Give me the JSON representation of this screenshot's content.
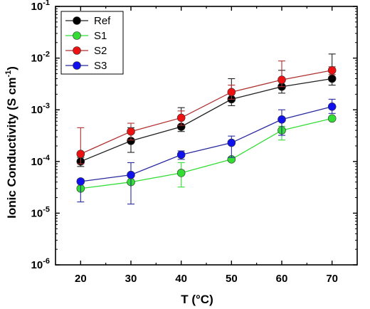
{
  "chart_data": {
    "type": "line",
    "xlabel": "T (°C)",
    "ylabel_main": "Ionic Conductivity (S cm",
    "ylabel_sup": "-1",
    "ylabel_close": ")",
    "y_scale": "log",
    "xlim": [
      15,
      75
    ],
    "ylim": [
      1e-06,
      0.1
    ],
    "x_ticks": [
      {
        "value": 20,
        "label": "20"
      },
      {
        "value": 30,
        "label": "30"
      },
      {
        "value": 40,
        "label": "40"
      },
      {
        "value": 50,
        "label": "50"
      },
      {
        "value": 60,
        "label": "60"
      },
      {
        "value": 70,
        "label": "70"
      }
    ],
    "y_ticks": [
      {
        "value": 1e-06,
        "base": "10",
        "exp": "-6"
      },
      {
        "value": 1e-05,
        "base": "10",
        "exp": "-5"
      },
      {
        "value": 0.0001,
        "base": "10",
        "exp": "-4"
      },
      {
        "value": 0.001,
        "base": "10",
        "exp": "-3"
      },
      {
        "value": 0.01,
        "base": "10",
        "exp": "-2"
      },
      {
        "value": 0.1,
        "base": "10",
        "exp": "-1"
      }
    ],
    "grid": false,
    "legend_position": "top-left",
    "x": [
      20,
      30,
      40,
      50,
      60,
      70
    ],
    "series": [
      {
        "name": "Ref",
        "color": "#000000",
        "line_color": "#222222",
        "values": [
          0.0001,
          0.00025,
          0.00047,
          0.0016,
          0.0028,
          0.004
        ],
        "err_low": [
          8e-05,
          0.00015,
          0.00038,
          0.0012,
          0.0021,
          0.003
        ],
        "err_high": [
          0.00012,
          0.00045,
          0.0011,
          0.004,
          0.0058,
          0.012
        ]
      },
      {
        "name": "S1",
        "color": "#33dd33",
        "line_color": "#33dd33",
        "values": [
          3e-05,
          4e-05,
          6e-05,
          0.00011,
          0.0004,
          0.00068
        ],
        "err_low": [
          3e-05,
          4e-05,
          3.2e-05,
          0.00011,
          0.00026,
          0.00068
        ],
        "err_high": [
          3e-05,
          4e-05,
          9.5e-05,
          0.00012,
          0.00048,
          0.00068
        ]
      },
      {
        "name": "S2",
        "color": "#ee1111",
        "line_color": "#b03030",
        "values": [
          0.00014,
          0.00038,
          0.0007,
          0.0022,
          0.0038,
          0.0058
        ],
        "err_low": [
          9e-05,
          0.00026,
          0.0005,
          0.0016,
          0.0028,
          0.0048
        ],
        "err_high": [
          0.00045,
          0.00055,
          0.00095,
          0.003,
          0.0088,
          0.0068
        ]
      },
      {
        "name": "S3",
        "color": "#1111ee",
        "line_color": "#2a2aa0",
        "values": [
          4.1e-05,
          5.5e-05,
          0.000135,
          0.00023,
          0.00065,
          0.00115
        ],
        "err_low": [
          1.65e-05,
          1.5e-05,
          0.00011,
          0.00012,
          0.00032,
          0.00085
        ],
        "err_high": [
          4.5e-05,
          9.5e-05,
          0.00016,
          0.00031,
          0.001,
          0.0016
        ]
      }
    ]
  }
}
